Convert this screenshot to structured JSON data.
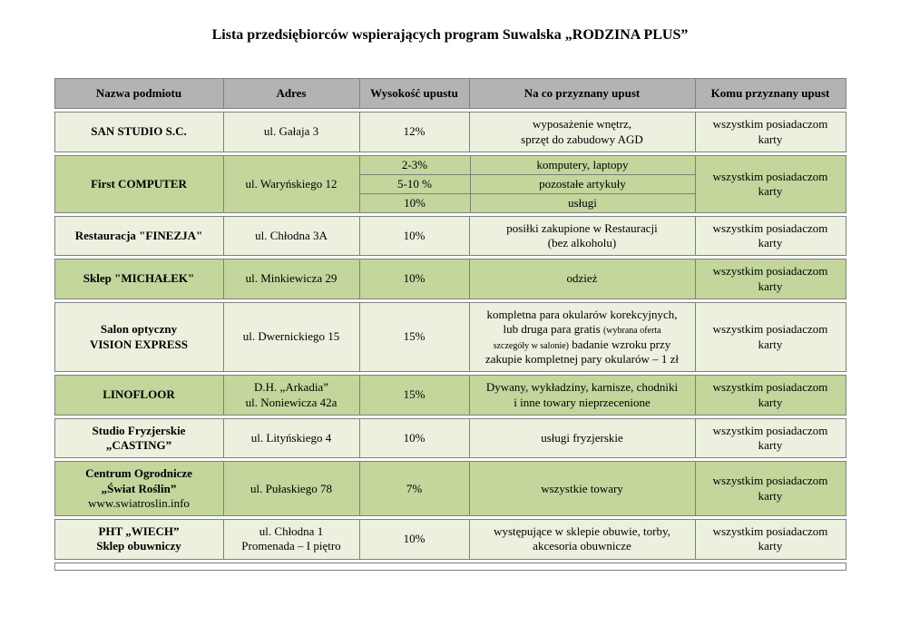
{
  "page": {
    "title": "Lista przedsiębiorców wspierających program Suwalska „RODZINA PLUS”"
  },
  "colors": {
    "header_bg": "#b3b3b3",
    "row_light": "#ebf1de",
    "row_dark": "#c3d69b",
    "border": "#7f7f7f"
  },
  "table": {
    "headers": [
      "Nazwa podmiotu",
      "Adres",
      "Wysokość upustu",
      "Na co przyznany upust",
      "Komu przyznany upust"
    ],
    "rows": [
      {
        "shade": "light",
        "name_lines": [
          {
            "text": "SAN STUDIO S.C.",
            "bold": true
          }
        ],
        "address_lines": [
          "ul. Gałaja 3"
        ],
        "discount": "12%",
        "scope_lines": [
          [
            {
              "text": "wyposażenie wnętrz,",
              "small": false
            }
          ],
          [
            {
              "text": "sprzęt do zabudowy AGD",
              "small": false
            }
          ]
        ],
        "beneficiary": "wszystkim posiadaczom karty"
      },
      {
        "shade": "dark",
        "name_lines": [
          {
            "text": "First COMPUTER",
            "bold": true
          }
        ],
        "address_lines": [
          "ul. Waryńskiego 12"
        ],
        "subrows": [
          {
            "discount": "2-3%",
            "scope": "komputery, laptopy"
          },
          {
            "discount": "5-10 %",
            "scope": "pozostałe artykuły"
          },
          {
            "discount": "10%",
            "scope": "usługi"
          }
        ],
        "beneficiary": "wszystkim posiadaczom karty"
      },
      {
        "shade": "light",
        "name_lines": [
          {
            "text": "Restauracja \"FINEZJA\"",
            "bold": true
          }
        ],
        "address_lines": [
          "ul. Chłodna 3A"
        ],
        "discount": "10%",
        "scope_lines": [
          [
            {
              "text": "posiłki zakupione w Restauracji",
              "small": false
            }
          ],
          [
            {
              "text": "(bez alkoholu)",
              "small": false
            }
          ]
        ],
        "beneficiary": "wszystkim posiadaczom karty"
      },
      {
        "shade": "dark",
        "name_lines": [
          {
            "text": "Sklep \"MICHAŁEK\"",
            "bold": true
          }
        ],
        "address_lines": [
          "ul. Minkiewicza 29"
        ],
        "discount": "10%",
        "scope_lines": [
          [
            {
              "text": "odzież",
              "small": false
            }
          ]
        ],
        "beneficiary": "wszystkim posiadaczom karty"
      },
      {
        "shade": "light",
        "name_lines": [
          {
            "text": "Salon optyczny",
            "bold": true
          },
          {
            "text": "VISION EXPRESS",
            "bold": true
          }
        ],
        "address_lines": [
          "ul. Dwernickiego 15"
        ],
        "discount": "15%",
        "scope_lines": [
          [
            {
              "text": "kompletna para okularów korekcyjnych,",
              "small": false
            }
          ],
          [
            {
              "text": "lub druga para gratis ",
              "small": false
            },
            {
              "text": "(wybrana oferta",
              "small": true
            }
          ],
          [
            {
              "text": "szczegóły w salonie)",
              "small": true
            },
            {
              "text": " badanie wzroku przy",
              "small": false
            }
          ],
          [
            {
              "text": "zakupie kompletnej pary okularów – 1 zł",
              "small": false
            }
          ]
        ],
        "beneficiary": "wszystkim posiadaczom karty"
      },
      {
        "shade": "dark",
        "name_lines": [
          {
            "text": "LINOFLOOR",
            "bold": true
          }
        ],
        "address_lines": [
          "D.H. „Arkadia”",
          "ul. Noniewicza 42a"
        ],
        "discount": "15%",
        "scope_lines": [
          [
            {
              "text": "Dywany, wykładziny, karnisze, chodniki",
              "small": false
            }
          ],
          [
            {
              "text": "i inne towary nieprzecenione",
              "small": false
            }
          ]
        ],
        "beneficiary": "wszystkim posiadaczom karty"
      },
      {
        "shade": "light",
        "name_lines": [
          {
            "text": "Studio Fryzjerskie",
            "bold": true
          },
          {
            "text": "„CASTING”",
            "bold": true
          }
        ],
        "address_lines": [
          "ul. Lityńskiego 4"
        ],
        "discount": "10%",
        "scope_lines": [
          [
            {
              "text": "usługi fryzjerskie",
              "small": false
            }
          ]
        ],
        "beneficiary": "wszystkim posiadaczom karty"
      },
      {
        "shade": "dark",
        "name_lines": [
          {
            "text": "Centrum Ogrodnicze",
            "bold": true
          },
          {
            "text": "„Świat Roślin”",
            "bold": true
          },
          {
            "text": "www.swiatroslin.info",
            "bold": false
          }
        ],
        "address_lines": [
          "ul. Pułaskiego 78"
        ],
        "discount": "7%",
        "scope_lines": [
          [
            {
              "text": "wszystkie towary",
              "small": false
            }
          ]
        ],
        "beneficiary": "wszystkim posiadaczom karty"
      },
      {
        "shade": "light",
        "name_lines": [
          {
            "text": "PHT „WIECH”",
            "bold": true
          },
          {
            "text": "Sklep obuwniczy",
            "bold": true
          }
        ],
        "address_lines": [
          "ul. Chłodna 1",
          "Promenada – I piętro"
        ],
        "discount": "10%",
        "scope_lines": [
          [
            {
              "text": "występujące w sklepie obuwie, torby,",
              "small": false
            }
          ],
          [
            {
              "text": "akcesoria obuwnicze",
              "small": false
            }
          ]
        ],
        "beneficiary": "wszystkim posiadaczom karty"
      }
    ]
  }
}
